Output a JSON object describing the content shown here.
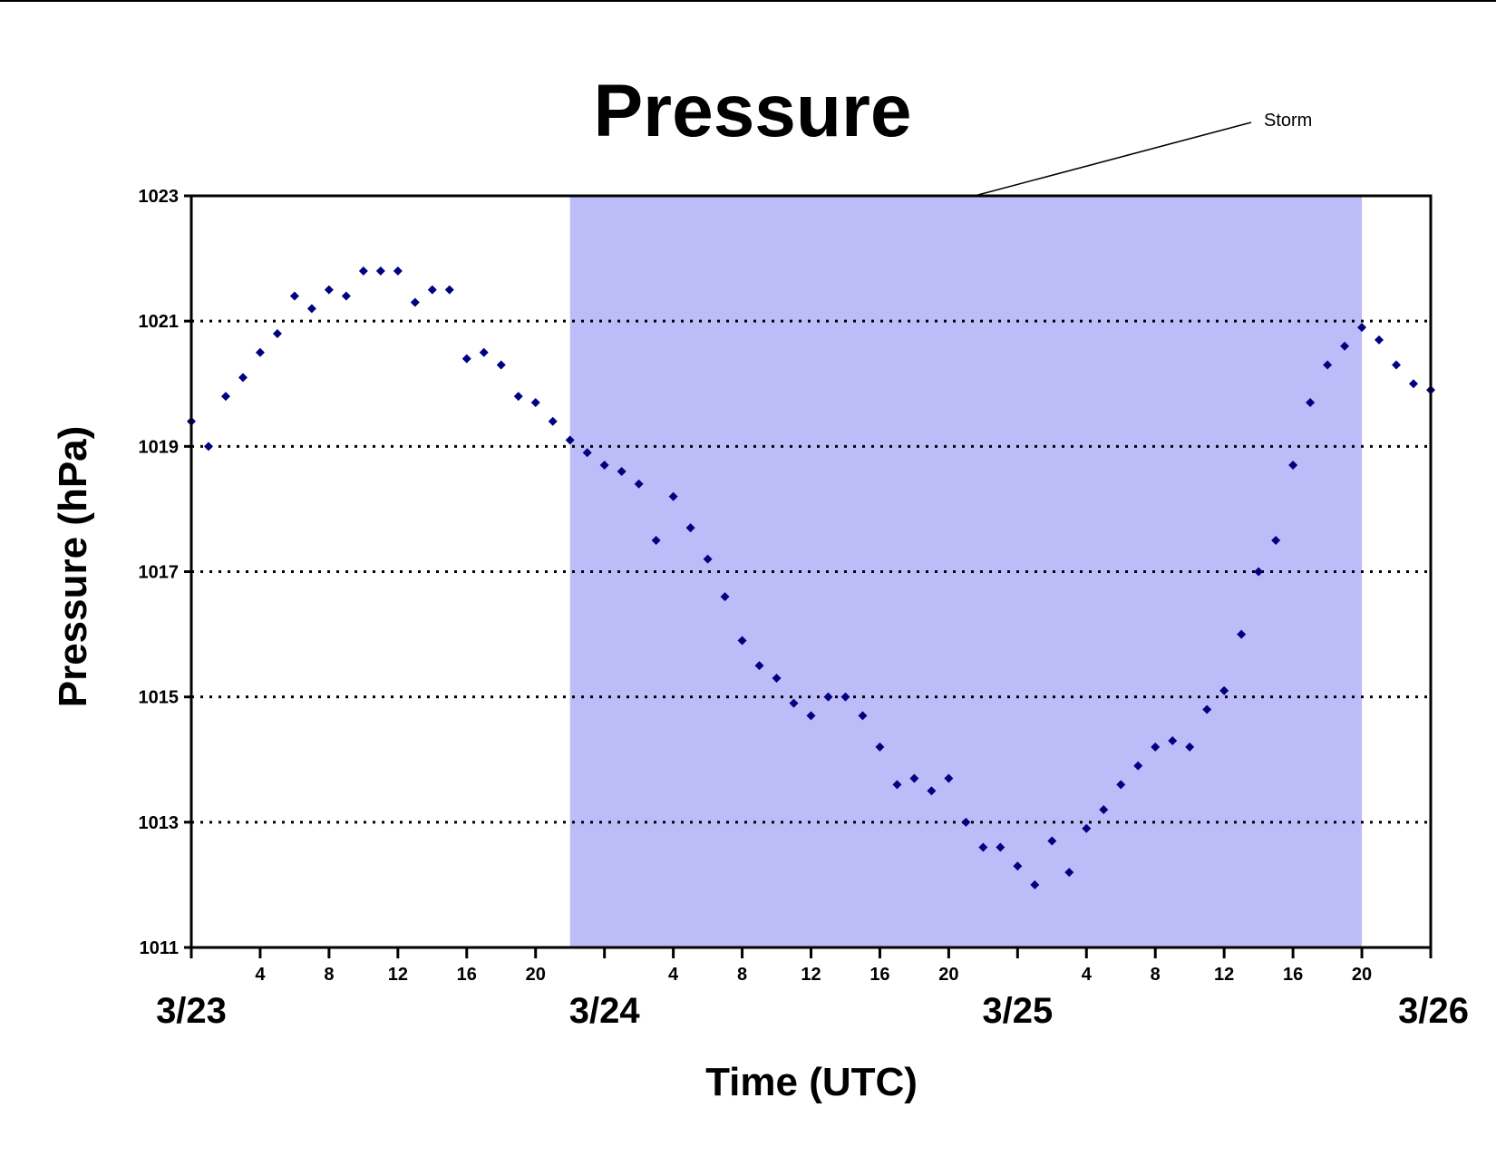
{
  "chart_data": {
    "type": "scatter",
    "title": "Pressure",
    "xlabel": "Time (UTC)",
    "ylabel": "Pressure (hPa)",
    "ylim": [
      1011,
      1023
    ],
    "yticks": [
      1011,
      1013,
      1015,
      1017,
      1019,
      1021,
      1023
    ],
    "xlim_hours": [
      0,
      72
    ],
    "xtick_labels": [
      "",
      "4",
      "8",
      "12",
      "16",
      "20",
      "",
      "4",
      "8",
      "12",
      "16",
      "20",
      "",
      "4",
      "8",
      "12",
      "16",
      "20",
      ""
    ],
    "date_labels": [
      "3/23",
      "3/24",
      "3/25",
      "3/26"
    ],
    "grid": "horizontal dotted",
    "marker_color": "#000080",
    "shaded_region": {
      "label": "Storm",
      "start_hour": 22,
      "end_hour": 68,
      "color": "#bcbcf8"
    },
    "series": [
      {
        "points": [
          [
            0,
            1019.4
          ],
          [
            1,
            1019.0
          ],
          [
            2,
            1019.8
          ],
          [
            3,
            1020.1
          ],
          [
            4,
            1020.5
          ],
          [
            5,
            1020.8
          ],
          [
            6,
            1021.4
          ],
          [
            7,
            1021.2
          ],
          [
            8,
            1021.5
          ],
          [
            9,
            1021.4
          ],
          [
            10,
            1021.8
          ],
          [
            11,
            1021.8
          ],
          [
            12,
            1021.8
          ],
          [
            13,
            1021.3
          ],
          [
            14,
            1021.5
          ],
          [
            15,
            1021.5
          ],
          [
            16,
            1020.4
          ],
          [
            17,
            1020.5
          ],
          [
            18,
            1020.3
          ],
          [
            19,
            1019.8
          ],
          [
            20,
            1019.7
          ],
          [
            21,
            1019.4
          ],
          [
            22,
            1019.1
          ],
          [
            23,
            1018.9
          ],
          [
            24,
            1018.7
          ],
          [
            25,
            1018.6
          ],
          [
            26,
            1018.4
          ],
          [
            27,
            1017.5
          ],
          [
            28,
            1018.2
          ],
          [
            29,
            1017.7
          ],
          [
            30,
            1017.2
          ],
          [
            31,
            1016.6
          ],
          [
            32,
            1015.9
          ],
          [
            33,
            1015.5
          ],
          [
            34,
            1015.3
          ],
          [
            35,
            1014.9
          ],
          [
            36,
            1014.7
          ],
          [
            37,
            1015.0
          ],
          [
            38,
            1015.0
          ],
          [
            39,
            1014.7
          ],
          [
            40,
            1014.2
          ],
          [
            41,
            1013.6
          ],
          [
            42,
            1013.7
          ],
          [
            43,
            1013.5
          ],
          [
            44,
            1013.7
          ],
          [
            45,
            1013.0
          ],
          [
            46,
            1012.6
          ],
          [
            47,
            1012.6
          ],
          [
            48,
            1012.3
          ],
          [
            49,
            1012.0
          ],
          [
            50,
            1012.7
          ],
          [
            51,
            1012.2
          ],
          [
            52,
            1012.9
          ],
          [
            53,
            1013.2
          ],
          [
            54,
            1013.6
          ],
          [
            55,
            1013.9
          ],
          [
            56,
            1014.2
          ],
          [
            57,
            1014.3
          ],
          [
            58,
            1014.2
          ],
          [
            59,
            1014.8
          ],
          [
            60,
            1015.1
          ],
          [
            61,
            1016.0
          ],
          [
            62,
            1017.0
          ],
          [
            63,
            1017.5
          ],
          [
            64,
            1018.7
          ],
          [
            65,
            1019.7
          ],
          [
            66,
            1020.3
          ],
          [
            67,
            1020.6
          ],
          [
            68,
            1020.9
          ],
          [
            69,
            1020.7
          ],
          [
            70,
            1020.3
          ],
          [
            71,
            1020.0
          ],
          [
            72,
            1019.9
          ]
        ]
      }
    ]
  }
}
